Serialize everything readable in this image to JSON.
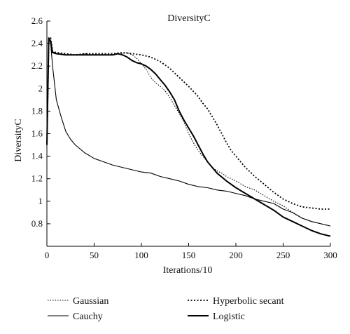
{
  "chart_data": {
    "type": "line",
    "title": "DiversityC",
    "xlabel": "Iterations/10",
    "ylabel": "DiversityC",
    "xlim": [
      0,
      300
    ],
    "ylim": [
      0.6,
      2.6
    ],
    "x_ticks": [
      0,
      50,
      100,
      150,
      200,
      250,
      300
    ],
    "y_ticks": [
      0.8,
      1,
      1.2,
      1.4,
      1.6,
      1.8,
      2,
      2.2,
      2.4,
      2.6
    ],
    "grid": false,
    "legend_position": "bottom",
    "series": [
      {
        "name": "Gaussian",
        "style": "dotted-thin",
        "x": [
          0,
          2,
          4,
          6,
          10,
          20,
          30,
          40,
          50,
          60,
          70,
          80,
          85,
          90,
          95,
          100,
          105,
          110,
          115,
          120,
          125,
          130,
          135,
          140,
          145,
          150,
          155,
          160,
          165,
          170,
          175,
          180,
          185,
          190,
          195,
          200,
          210,
          220,
          230,
          240,
          250,
          260,
          270,
          280,
          290,
          300
        ],
        "y": [
          1.5,
          2.4,
          2.42,
          2.33,
          2.31,
          2.3,
          2.3,
          2.31,
          2.3,
          2.3,
          2.3,
          2.31,
          2.32,
          2.3,
          2.27,
          2.22,
          2.17,
          2.1,
          2.05,
          2.02,
          1.98,
          1.92,
          1.85,
          1.78,
          1.7,
          1.6,
          1.52,
          1.45,
          1.4,
          1.35,
          1.3,
          1.27,
          1.25,
          1.22,
          1.2,
          1.18,
          1.13,
          1.1,
          1.05,
          1.0,
          0.96,
          0.9,
          0.85,
          0.82,
          0.8,
          0.78
        ]
      },
      {
        "name": "Cauchy",
        "style": "solid-thin",
        "x": [
          0,
          2,
          4,
          6,
          8,
          10,
          15,
          20,
          25,
          30,
          40,
          50,
          60,
          70,
          80,
          90,
          100,
          110,
          120,
          130,
          140,
          150,
          160,
          170,
          180,
          190,
          200,
          210,
          220,
          230,
          240,
          250,
          260,
          270,
          280,
          290,
          300
        ],
        "y": [
          1.5,
          2.45,
          2.4,
          2.2,
          2.05,
          1.9,
          1.75,
          1.62,
          1.55,
          1.5,
          1.43,
          1.38,
          1.35,
          1.32,
          1.3,
          1.28,
          1.26,
          1.25,
          1.22,
          1.2,
          1.18,
          1.15,
          1.13,
          1.12,
          1.1,
          1.09,
          1.07,
          1.05,
          1.02,
          1.0,
          0.98,
          0.93,
          0.9,
          0.85,
          0.82,
          0.8,
          0.78
        ]
      },
      {
        "name": "Hyperbolic secant",
        "style": "dotted-thick",
        "x": [
          0,
          2,
          4,
          6,
          10,
          20,
          30,
          40,
          50,
          60,
          70,
          80,
          90,
          100,
          110,
          120,
          130,
          140,
          150,
          160,
          165,
          170,
          175,
          180,
          185,
          190,
          195,
          200,
          210,
          220,
          230,
          240,
          250,
          260,
          270,
          280,
          290,
          300
        ],
        "y": [
          1.5,
          2.42,
          2.45,
          2.33,
          2.32,
          2.31,
          2.3,
          2.31,
          2.31,
          2.31,
          2.31,
          2.32,
          2.31,
          2.3,
          2.28,
          2.24,
          2.18,
          2.1,
          2.02,
          1.93,
          1.87,
          1.82,
          1.75,
          1.68,
          1.6,
          1.52,
          1.45,
          1.4,
          1.3,
          1.22,
          1.15,
          1.08,
          1.02,
          0.98,
          0.95,
          0.94,
          0.93,
          0.93
        ]
      },
      {
        "name": "Logistic",
        "style": "solid-thick",
        "x": [
          0,
          2,
          4,
          6,
          10,
          20,
          30,
          40,
          50,
          60,
          70,
          75,
          80,
          85,
          90,
          95,
          100,
          105,
          110,
          115,
          120,
          125,
          130,
          135,
          140,
          145,
          150,
          155,
          160,
          165,
          170,
          180,
          190,
          200,
          210,
          220,
          230,
          240,
          250,
          260,
          270,
          280,
          290,
          300
        ],
        "y": [
          1.5,
          2.45,
          2.42,
          2.32,
          2.31,
          2.3,
          2.3,
          2.3,
          2.3,
          2.3,
          2.3,
          2.31,
          2.3,
          2.28,
          2.25,
          2.23,
          2.22,
          2.2,
          2.17,
          2.13,
          2.08,
          2.03,
          1.97,
          1.9,
          1.8,
          1.72,
          1.65,
          1.58,
          1.5,
          1.42,
          1.35,
          1.25,
          1.18,
          1.12,
          1.07,
          1.02,
          0.97,
          0.92,
          0.86,
          0.82,
          0.78,
          0.74,
          0.71,
          0.69
        ]
      }
    ]
  }
}
